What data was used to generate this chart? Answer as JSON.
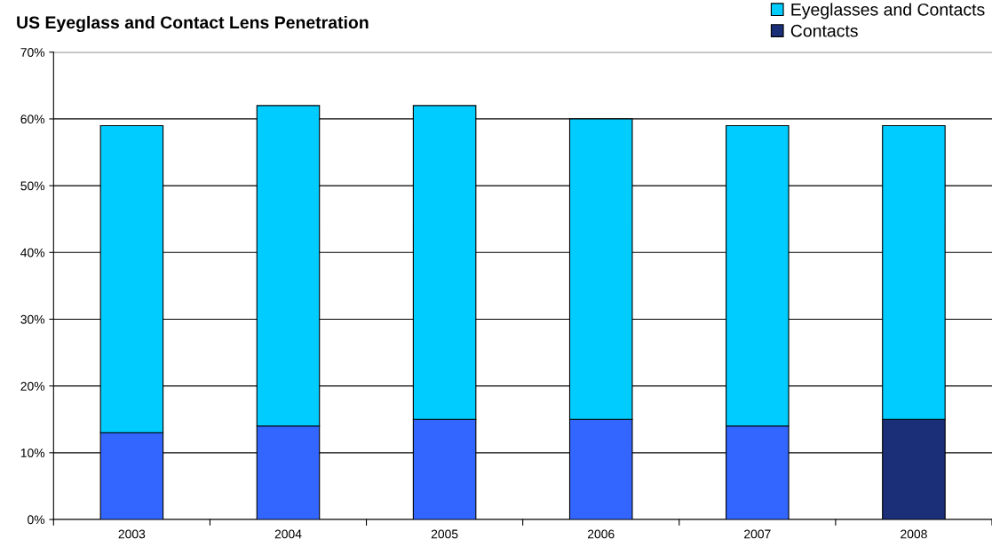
{
  "chart_data": {
    "type": "bar",
    "title": "US Eyeglass and Contact Lens Penetration",
    "categories": [
      "2003",
      "2004",
      "2005",
      "2006",
      "2007",
      "2008"
    ],
    "stacked": true,
    "series": [
      {
        "name": "Contacts",
        "color": "#1a2f78",
        "colors": [
          "#3366ff",
          "#3366ff",
          "#3366ff",
          "#3366ff",
          "#3366ff",
          "#1a2f78"
        ],
        "values": [
          13,
          14,
          15,
          15,
          14,
          15
        ]
      },
      {
        "name": "Eyeglasses and Contacts",
        "color": "#00ccff",
        "colors": [
          "#00ccff",
          "#00ccff",
          "#00ccff",
          "#00ccff",
          "#00ccff",
          "#00ccff"
        ],
        "values": [
          46,
          48,
          47,
          45,
          45,
          44
        ]
      }
    ],
    "ylim": [
      0,
      70
    ],
    "yticks": [
      {
        "value": 0,
        "label": "0%"
      },
      {
        "value": 10,
        "label": "10%"
      },
      {
        "value": 20,
        "label": "20%"
      },
      {
        "value": 30,
        "label": "30%"
      },
      {
        "value": 40,
        "label": "40%"
      },
      {
        "value": 50,
        "label": "50%"
      },
      {
        "value": 60,
        "label": "60%"
      },
      {
        "value": 70,
        "label": "70%"
      }
    ],
    "grid": "y",
    "legend": "top right"
  }
}
